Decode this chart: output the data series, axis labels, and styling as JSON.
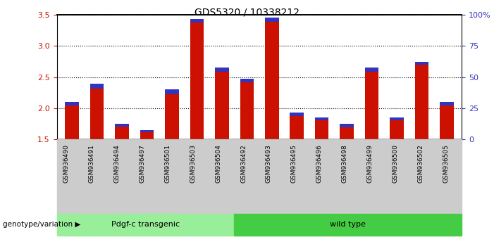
{
  "title": "GDS5320 / 10338212",
  "categories": [
    "GSM936490",
    "GSM936491",
    "GSM936494",
    "GSM936497",
    "GSM936501",
    "GSM936503",
    "GSM936504",
    "GSM936492",
    "GSM936493",
    "GSM936495",
    "GSM936496",
    "GSM936498",
    "GSM936499",
    "GSM936500",
    "GSM936502",
    "GSM936505"
  ],
  "red_values": [
    2.1,
    2.4,
    1.75,
    1.65,
    2.3,
    3.43,
    2.65,
    2.48,
    3.46,
    1.93,
    1.85,
    1.75,
    2.65,
    1.85,
    2.75,
    2.1
  ],
  "blue_values": [
    0.05,
    0.08,
    0.04,
    0.03,
    0.07,
    0.05,
    0.06,
    0.06,
    0.07,
    0.05,
    0.04,
    0.05,
    0.06,
    0.04,
    0.05,
    0.06
  ],
  "ylim_left": [
    1.5,
    3.5
  ],
  "ylim_right": [
    0,
    100
  ],
  "yticks_left": [
    1.5,
    2.0,
    2.5,
    3.0,
    3.5
  ],
  "yticks_right": [
    0,
    25,
    50,
    75,
    100
  ],
  "ytick_labels_right": [
    "0",
    "25",
    "50",
    "75",
    "100%"
  ],
  "group1_label": "Pdgf-c transgenic",
  "group2_label": "wild type",
  "group1_count": 7,
  "group2_count": 9,
  "bar_width": 0.55,
  "red_color": "#cc1100",
  "blue_color": "#3333bb",
  "group1_color": "#99ee99",
  "group2_color": "#44cc44",
  "bg_color": "#ffffff",
  "tick_color_left": "#cc1100",
  "tick_color_right": "#3333bb",
  "ticklabel_bg": "#cccccc"
}
